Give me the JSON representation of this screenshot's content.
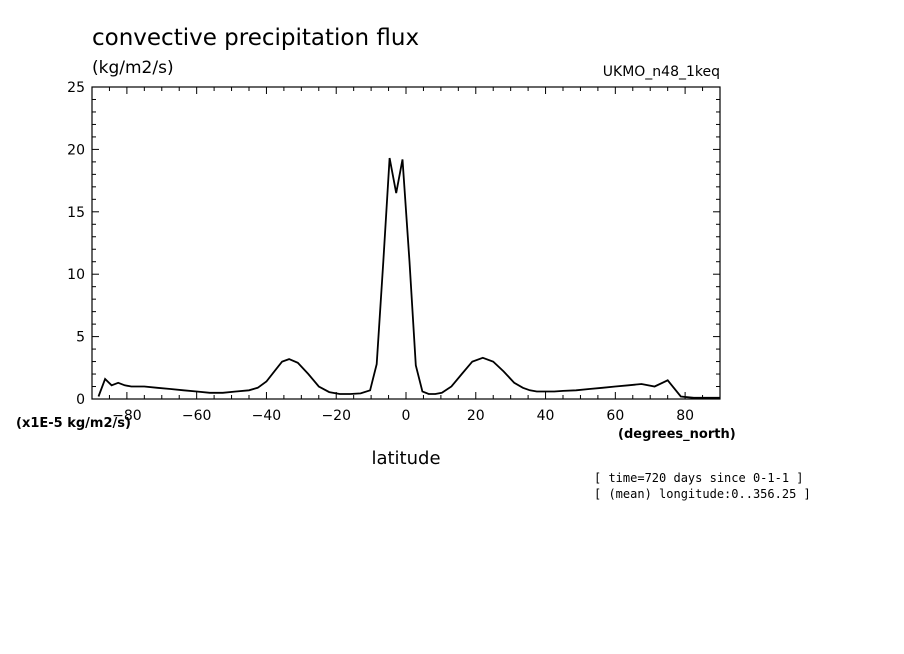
{
  "chart_data": {
    "type": "line",
    "title": "convective precipitation flux",
    "units": "(kg/m2/s)",
    "dataset": "UKMO_n48_1keq",
    "xlabel": "latitude",
    "x_units": "(degrees_north)",
    "y_scale_note": "(x1E-5 kg/m2/s)",
    "xlim": [
      -90,
      90
    ],
    "ylim": [
      0,
      25
    ],
    "x_ticks": [
      -80,
      -60,
      -40,
      -20,
      0,
      20,
      40,
      60,
      80
    ],
    "y_ticks": [
      0,
      5,
      10,
      15,
      20,
      25
    ],
    "grid": false,
    "series": [
      {
        "x": [
          -88.125,
          -86.25,
          -84.375,
          -82.5,
          -80.625,
          -78.75,
          -75,
          -71.25,
          -67.5,
          -63.75,
          -60,
          -56.25,
          -52.5,
          -48.75,
          -45,
          -42.5,
          -40,
          -37.5,
          -35.5,
          -33.5,
          -31,
          -28,
          -25,
          -22,
          -19,
          -16,
          -13,
          -10.3,
          -8.4,
          -6.5,
          -4.7,
          -2.8,
          -1.0,
          1.0,
          2.8,
          4.7,
          6.5,
          8.4,
          10.3,
          13,
          16,
          19,
          22,
          25,
          28,
          31,
          33.5,
          35.5,
          37.5,
          40,
          42.5,
          45,
          48.75,
          52.5,
          56.25,
          60,
          63.75,
          67.5,
          71.25,
          75,
          78.75,
          82.5,
          84.375,
          86.25,
          88.125,
          90
        ],
        "y": [
          0.2,
          1.6,
          1.1,
          1.3,
          1.1,
          1.0,
          1.0,
          0.9,
          0.8,
          0.7,
          0.6,
          0.5,
          0.5,
          0.6,
          0.7,
          0.9,
          1.4,
          2.3,
          3.0,
          3.2,
          2.9,
          2.0,
          1.0,
          0.55,
          0.4,
          0.4,
          0.45,
          0.7,
          2.8,
          11.0,
          19.3,
          16.5,
          19.2,
          11.0,
          2.7,
          0.6,
          0.4,
          0.4,
          0.5,
          1.0,
          2.0,
          3.0,
          3.3,
          3.0,
          2.2,
          1.3,
          0.9,
          0.7,
          0.6,
          0.6,
          0.6,
          0.65,
          0.7,
          0.8,
          0.9,
          1.0,
          1.1,
          1.2,
          1.0,
          1.5,
          0.2,
          0.1,
          0.1,
          0.1,
          0.1,
          0.1
        ]
      }
    ]
  },
  "notes": {
    "time": "[ time=720 days since 0-1-1 ]",
    "longitude": "[ (mean) longitude:0..356.25 ]"
  }
}
